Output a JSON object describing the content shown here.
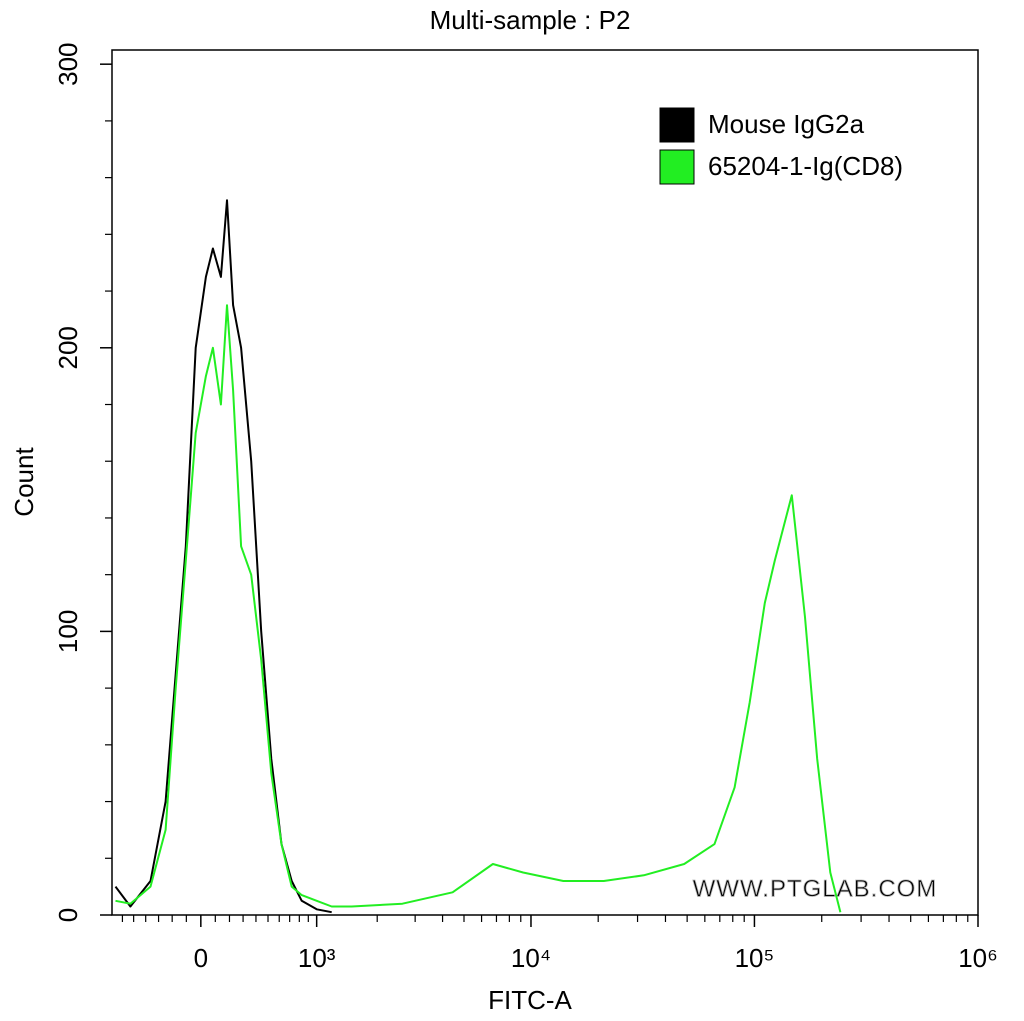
{
  "chart_data": {
    "type": "histogram-overlay",
    "title": "Multi-sample : P2",
    "xlabel": "FITC-A",
    "ylabel": "Count",
    "xscale": "biexponential",
    "xlim": [
      -700,
      1000000
    ],
    "ylim": [
      0,
      305
    ],
    "xticks": [
      0,
      {
        "value": 1000,
        "label": "10³"
      },
      {
        "value": 10000,
        "label": "10⁴"
      },
      {
        "value": 100000,
        "label": "10⁵"
      },
      {
        "value": 1000000,
        "label": "10⁶"
      }
    ],
    "xminorticks": [
      -600,
      -500,
      -400,
      -300,
      -200,
      -100,
      100,
      200,
      300,
      400,
      500,
      600,
      700,
      800,
      900,
      2000,
      3000,
      4000,
      5000,
      6000,
      7000,
      8000,
      9000,
      20000,
      30000,
      40000,
      50000,
      60000,
      70000,
      80000,
      90000,
      200000,
      300000,
      400000,
      500000,
      600000,
      700000,
      800000,
      900000
    ],
    "yticks": [
      0,
      100,
      200,
      300
    ],
    "yminorticks": [
      20,
      40,
      60,
      80,
      120,
      140,
      160,
      180,
      220,
      240,
      260,
      280
    ],
    "legend": "top-right",
    "watermark": "WWW.PTGLAB.COM",
    "series": [
      {
        "name": "Mouse IgG2a",
        "color": "#000000",
        "x": [
          -666,
          -528,
          -362,
          -248,
          -175,
          -104,
          -35,
          35,
          83,
          139,
          182,
          226,
          285,
          362,
          443,
          529,
          621,
          721,
          826,
          1000,
          1199
        ],
        "values": [
          10,
          3,
          12,
          40,
          85,
          130,
          200,
          225,
          235,
          225,
          252,
          215,
          200,
          160,
          100,
          55,
          25,
          12,
          5,
          2,
          1
        ]
      },
      {
        "name": "65204-1-Ig(CD8)",
        "color": "#22ee22",
        "x": [
          -666,
          -528,
          -362,
          -248,
          -175,
          -104,
          -35,
          35,
          83,
          139,
          182,
          226,
          285,
          362,
          443,
          529,
          621,
          721,
          826,
          1000,
          1199,
          1510,
          2620,
          4440,
          6750,
          9220,
          13960,
          21200,
          32000,
          48500,
          66300,
          81500,
          95200,
          111300,
          123400,
          147000,
          168300,
          190800,
          218400,
          242500
        ],
        "values": [
          5,
          4,
          10,
          30,
          80,
          125,
          170,
          190,
          200,
          180,
          215,
          185,
          130,
          120,
          90,
          50,
          25,
          10,
          7,
          5,
          3,
          3,
          4,
          8,
          18,
          15,
          12,
          12,
          14,
          18,
          25,
          45,
          75,
          110,
          125,
          148,
          105,
          55,
          15,
          1
        ]
      }
    ]
  }
}
